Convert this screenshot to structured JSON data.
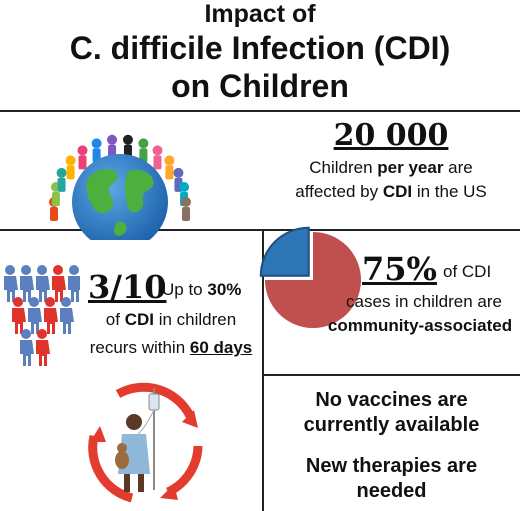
{
  "title": {
    "line1": "Impact of",
    "line2": "C. difficile Infection (CDI)",
    "line3": "on Children"
  },
  "stat1": {
    "number": "20 000",
    "line1_a": "Children ",
    "line1_b": "per year",
    "line1_c": " are",
    "line2_a": "affected by ",
    "line2_b": "CDI",
    "line2_c": " in the US"
  },
  "stat2": {
    "number": "3/10",
    "line1_a": "Up to ",
    "line1_b": "30%",
    "line2_a": "of ",
    "line2_b": "CDI",
    "line2_c": " in children",
    "line3_a": "recurs within ",
    "line3_b": "60 days"
  },
  "stat3": {
    "number": "75%",
    "line1": "of CDI",
    "line2": "cases in children are",
    "line3": "community-associated",
    "pie_fraction": 0.25,
    "colors": {
      "slice": "#2e75b6",
      "rest": "#c0504d"
    }
  },
  "stat4": {
    "line1": "No vaccines are",
    "line2": "currently available",
    "line3": "New therapies are",
    "line4": "needed"
  },
  "people_colors": [
    "#5b7fbf",
    "#e0332c"
  ]
}
